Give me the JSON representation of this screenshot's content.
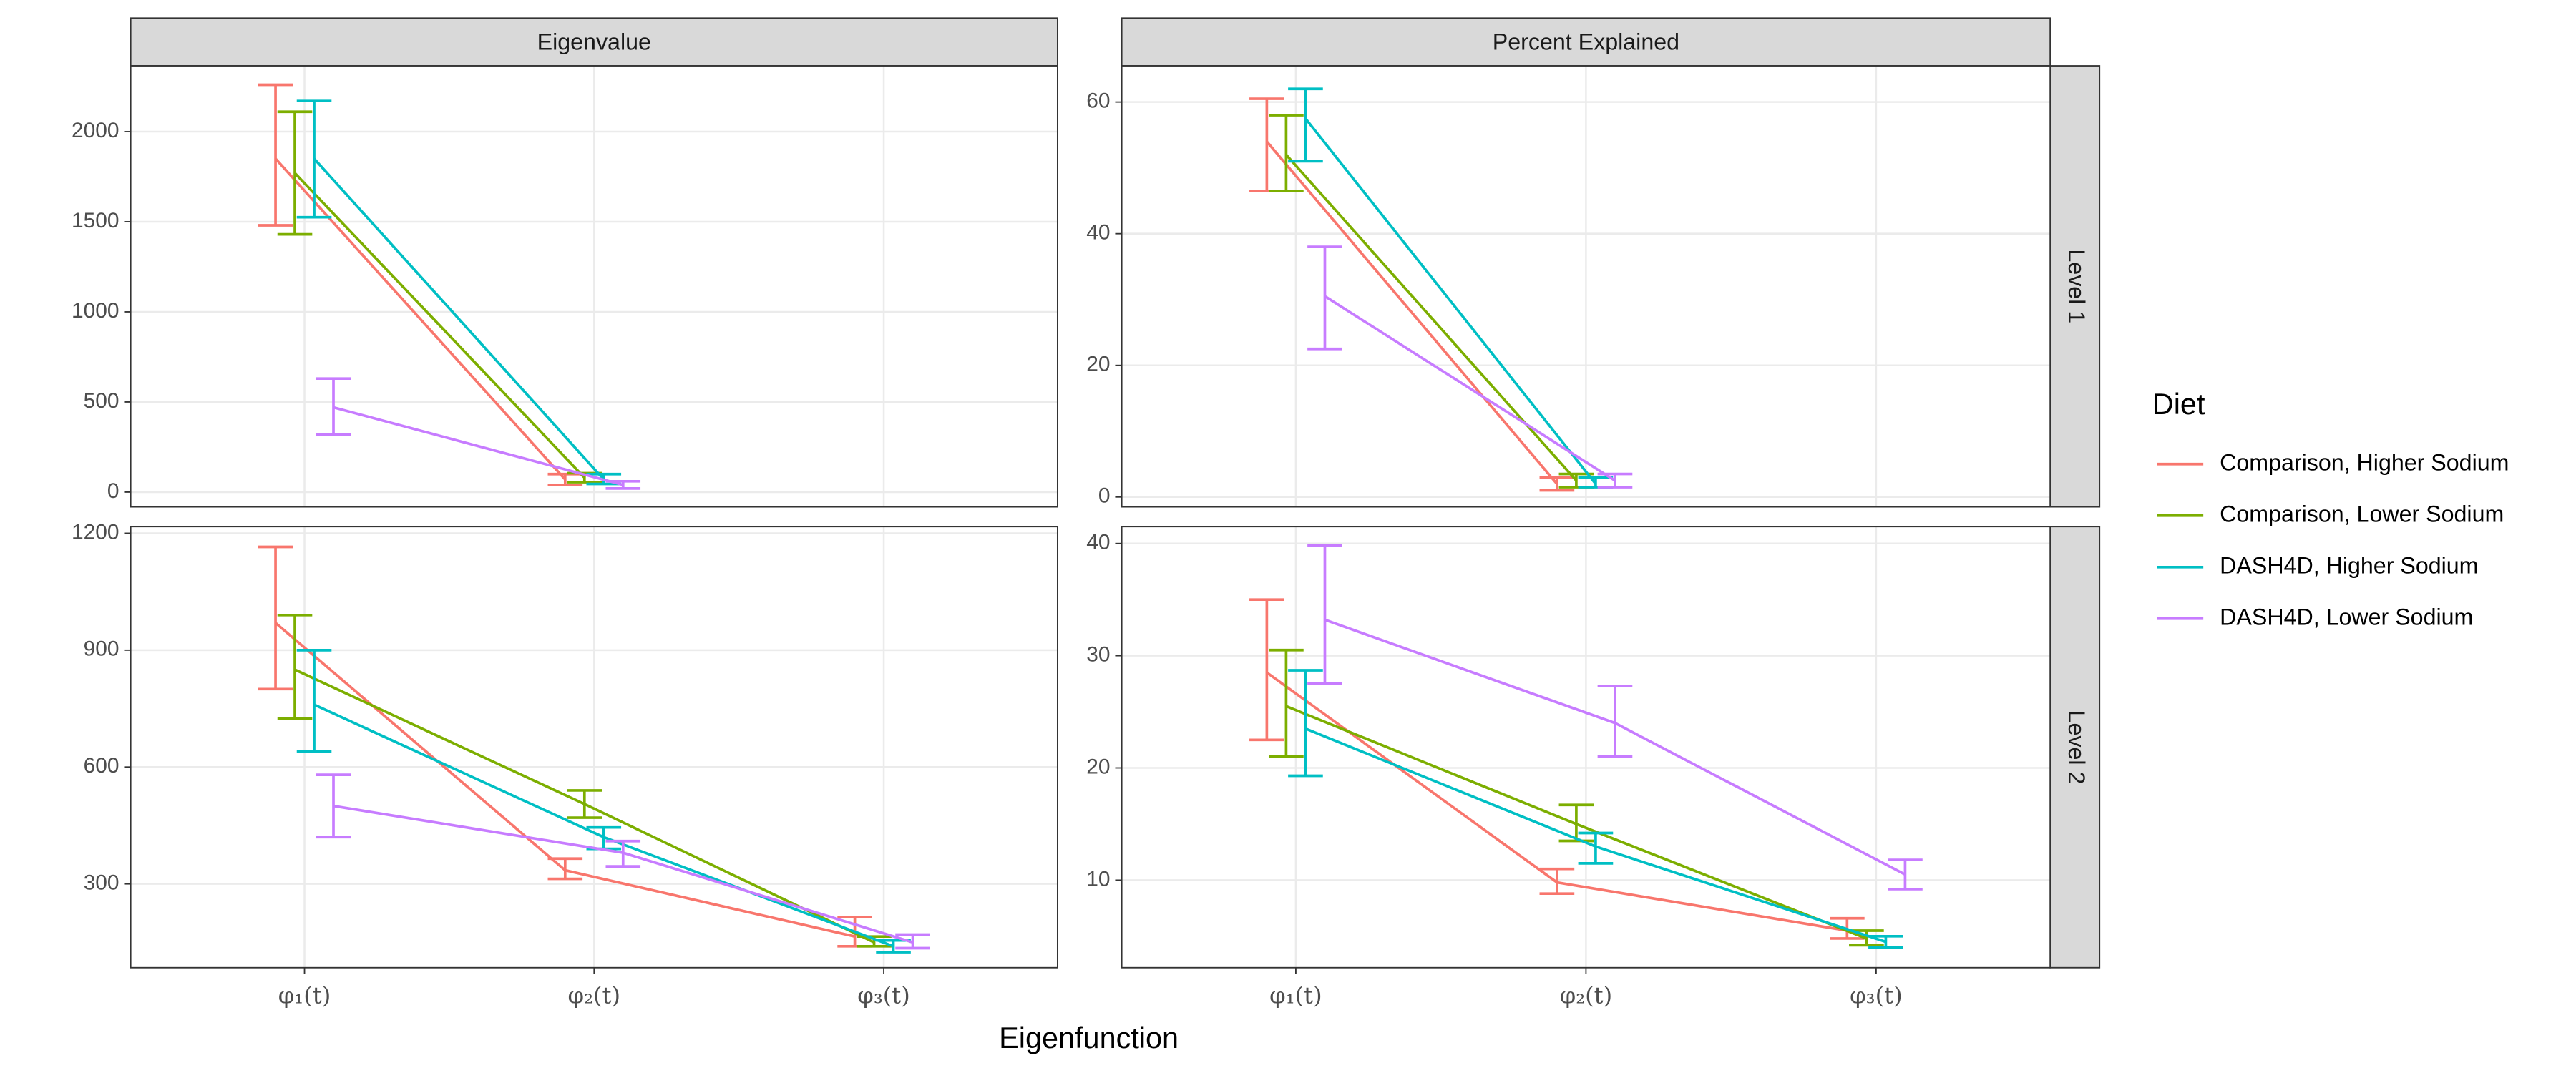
{
  "chart_data": {
    "type": "line",
    "xlabel": "Eigenfunction",
    "legend": {
      "title": "Diet",
      "corner": "right"
    },
    "categories": [
      "φ₁(t)",
      "φ₂(t)",
      "φ₃(t)"
    ],
    "columns": [
      "Eigenvalue",
      "Percent Explained"
    ],
    "rows": [
      "Level 1",
      "Level 2"
    ],
    "grid": true,
    "series": [
      {
        "name": "Comparison, Higher Sodium",
        "color": "#F8766D"
      },
      {
        "name": "Comparison, Lower Sodium",
        "color": "#7CAE00"
      },
      {
        "name": "DASH4D, Higher Sodium",
        "color": "#00BFC4"
      },
      {
        "name": "DASH4D, Lower Sodium",
        "color": "#C77CFF"
      }
    ],
    "panels": [
      {
        "column": 0,
        "row": 0,
        "ylim": [
          -82,
          2365
        ],
        "yticks": [
          0,
          500,
          1000,
          1500,
          2000
        ],
        "series": [
          {
            "values": [
              1850,
              70,
              null
            ],
            "lower": [
              1480,
              40,
              null
            ],
            "upper": [
              2260,
              100,
              null
            ]
          },
          {
            "values": [
              1770,
              80,
              null
            ],
            "lower": [
              1430,
              55,
              null
            ],
            "upper": [
              2110,
              105,
              null
            ]
          },
          {
            "values": [
              1850,
              70,
              null
            ],
            "lower": [
              1525,
              45,
              null
            ],
            "upper": [
              2170,
              100,
              null
            ]
          },
          {
            "values": [
              470,
              40,
              null
            ],
            "lower": [
              320,
              20,
              null
            ],
            "upper": [
              630,
              60,
              null
            ]
          }
        ]
      },
      {
        "column": 0,
        "row": 1,
        "ylim": [
          85,
          1217
        ],
        "yticks": [
          300,
          600,
          900,
          1200
        ],
        "series": [
          {
            "values": [
              970,
              335,
              165
            ],
            "lower": [
              800,
              313,
              140
            ],
            "upper": [
              1165,
              365,
              215
            ]
          },
          {
            "values": [
              850,
              505,
              150
            ],
            "lower": [
              725,
              470,
              140
            ],
            "upper": [
              990,
              540,
              165
            ]
          },
          {
            "values": [
              760,
              420,
              140
            ],
            "lower": [
              640,
              390,
              125
            ],
            "upper": [
              900,
              445,
              155
            ]
          },
          {
            "values": [
              500,
              380,
              150
            ],
            "lower": [
              420,
              345,
              135
            ],
            "upper": [
              580,
              410,
              170
            ]
          }
        ]
      },
      {
        "column": 1,
        "row": 0,
        "ylim": [
          -1.5,
          65.5
        ],
        "yticks": [
          0,
          20,
          40,
          60
        ],
        "series": [
          {
            "values": [
              54,
              2,
              null
            ],
            "lower": [
              46.5,
              1,
              null
            ],
            "upper": [
              60.5,
              3,
              null
            ]
          },
          {
            "values": [
              52,
              2.5,
              null
            ],
            "lower": [
              46.5,
              1.5,
              null
            ],
            "upper": [
              58,
              3.5,
              null
            ]
          },
          {
            "values": [
              57.5,
              2,
              null
            ],
            "lower": [
              51,
              1.5,
              null
            ],
            "upper": [
              62,
              3,
              null
            ]
          },
          {
            "values": [
              30.5,
              2.5,
              null
            ],
            "lower": [
              22.5,
              1.5,
              null
            ],
            "upper": [
              38,
              3.5,
              null
            ]
          }
        ]
      },
      {
        "column": 1,
        "row": 1,
        "ylim": [
          2.2,
          41.5
        ],
        "yticks": [
          10,
          20,
          30,
          40
        ],
        "series": [
          {
            "values": [
              28.5,
              9.8,
              5.5
            ],
            "lower": [
              22.5,
              8.8,
              4.8
            ],
            "upper": [
              35,
              11,
              6.6
            ]
          },
          {
            "values": [
              25.5,
              15,
              4.8
            ],
            "lower": [
              21,
              13.5,
              4.2
            ],
            "upper": [
              30.5,
              16.7,
              5.5
            ]
          },
          {
            "values": [
              23.5,
              13,
              4.5
            ],
            "lower": [
              19.3,
              11.5,
              4
            ],
            "upper": [
              28.7,
              14.2,
              5
            ]
          },
          {
            "values": [
              33.2,
              24,
              10.5
            ],
            "lower": [
              27.5,
              21,
              9.2
            ],
            "upper": [
              39.8,
              27.3,
              11.8
            ]
          }
        ]
      }
    ]
  }
}
